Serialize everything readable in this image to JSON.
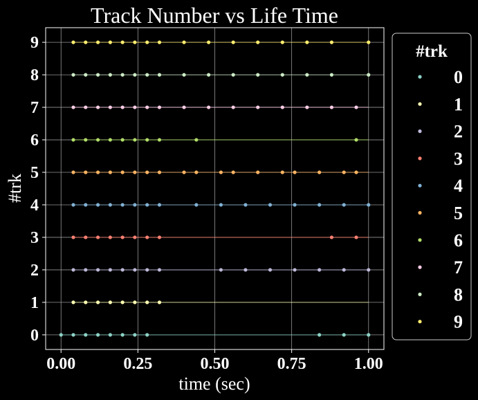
{
  "chart_data": {
    "type": "scatter",
    "title": "Track Number vs Life Time",
    "xlabel": "time (sec)",
    "ylabel": "#trk",
    "xlim": [
      -0.05,
      1.05
    ],
    "ylim": [
      -0.45,
      9.45
    ],
    "xticks": [
      0.0,
      0.25,
      0.5,
      0.75,
      1.0
    ],
    "xtick_labels": [
      "0.00",
      "0.25",
      "0.50",
      "0.75",
      "1.00"
    ],
    "yticks": [
      0,
      1,
      2,
      3,
      4,
      5,
      6,
      7,
      8,
      9
    ],
    "ytick_labels": [
      "0",
      "1",
      "2",
      "3",
      "4",
      "5",
      "6",
      "7",
      "8",
      "9"
    ],
    "grid": true,
    "legend": {
      "title": "#trk",
      "placement": "outside-right"
    },
    "line_span": [
      0.04,
      1.0
    ],
    "series": [
      {
        "name": "0",
        "color": "#8dd3c7",
        "line_start": 0.0,
        "y": 0,
        "x": [
          0.0,
          0.04,
          0.08,
          0.12,
          0.16,
          0.2,
          0.24,
          0.28,
          0.84,
          0.92,
          1.0
        ]
      },
      {
        "name": "1",
        "color": "#ffffb3",
        "y": 1,
        "x": [
          0.04,
          0.08,
          0.12,
          0.16,
          0.2,
          0.24,
          0.28,
          0.32
        ]
      },
      {
        "name": "2",
        "color": "#bebada",
        "y": 2,
        "x": [
          0.04,
          0.08,
          0.12,
          0.16,
          0.2,
          0.24,
          0.28,
          0.32,
          0.52,
          0.6,
          0.68,
          0.76,
          0.84,
          0.92,
          1.0
        ]
      },
      {
        "name": "3",
        "color": "#fb8072",
        "y": 3,
        "x": [
          0.04,
          0.08,
          0.12,
          0.16,
          0.2,
          0.24,
          0.28,
          0.32,
          0.88,
          0.96
        ]
      },
      {
        "name": "4",
        "color": "#80b1d3",
        "y": 4,
        "x": [
          0.04,
          0.08,
          0.12,
          0.16,
          0.2,
          0.24,
          0.28,
          0.32,
          0.44,
          0.52,
          0.6,
          0.68,
          0.76,
          0.84,
          0.92,
          1.0
        ]
      },
      {
        "name": "5",
        "color": "#fdb462",
        "y": 5,
        "x": [
          0.04,
          0.08,
          0.12,
          0.16,
          0.2,
          0.24,
          0.28,
          0.32,
          0.4,
          0.44,
          0.52,
          0.56,
          0.64,
          0.72,
          0.76,
          0.84,
          0.92,
          0.96
        ]
      },
      {
        "name": "6",
        "color": "#b3de69",
        "y": 6,
        "x": [
          0.04,
          0.08,
          0.12,
          0.16,
          0.2,
          0.24,
          0.28,
          0.32,
          0.44,
          0.96
        ]
      },
      {
        "name": "7",
        "color": "#fccde5",
        "y": 7,
        "x": [
          0.04,
          0.08,
          0.12,
          0.16,
          0.2,
          0.24,
          0.28,
          0.32,
          0.4,
          0.48,
          0.56,
          0.64,
          0.72,
          0.8,
          0.88,
          0.96
        ]
      },
      {
        "name": "8",
        "color": "#ccebc5",
        "y": 8,
        "x": [
          0.04,
          0.08,
          0.12,
          0.16,
          0.2,
          0.24,
          0.28,
          0.32,
          0.4,
          0.48,
          0.56,
          0.64,
          0.72,
          0.8,
          0.88,
          1.0
        ]
      },
      {
        "name": "9",
        "color": "#ffed6f",
        "y": 9,
        "x": [
          0.04,
          0.08,
          0.12,
          0.16,
          0.2,
          0.24,
          0.28,
          0.32,
          0.4,
          0.48,
          0.56,
          0.64,
          0.72,
          0.8,
          0.88,
          1.0
        ]
      }
    ]
  }
}
